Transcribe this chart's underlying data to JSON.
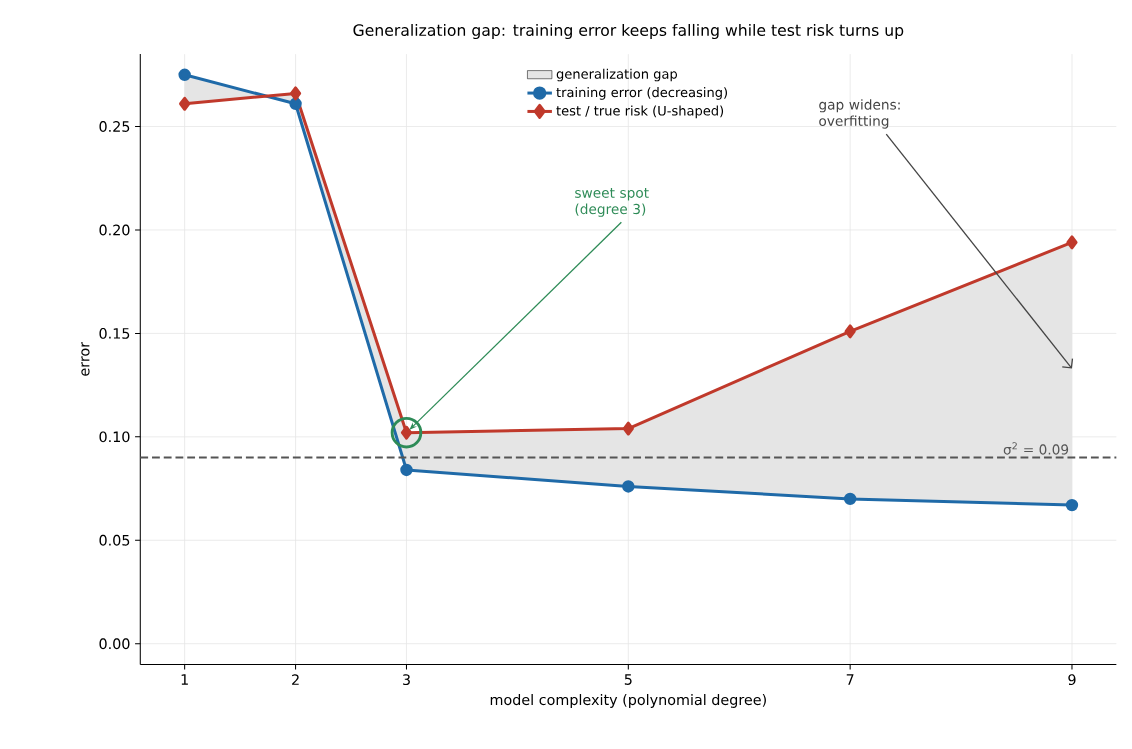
{
  "chart_data": {
    "type": "line",
    "title": "Generalization gap: training error keeps falling while test risk turns up",
    "xlabel": "model complexity (polynomial degree)",
    "ylabel": "error",
    "x": [
      1,
      2,
      3,
      5,
      7,
      9
    ],
    "series": [
      {
        "name": "training error (decreasing)",
        "type": "line",
        "color": "#1f6aa8",
        "marker": "circle",
        "values": [
          0.275,
          0.261,
          0.084,
          0.076,
          0.07,
          0.067
        ]
      },
      {
        "name": "test / true risk (U-shaped)",
        "type": "line",
        "color": "#c0392b",
        "marker": "diamond",
        "values": [
          0.261,
          0.266,
          0.102,
          0.104,
          0.151,
          0.194
        ],
        "lower": [
          0.275,
          0.261,
          0.084,
          0.076,
          0.07,
          0.067
        ],
        "upper": [
          0.261,
          0.266,
          0.102,
          0.104,
          0.151,
          0.194
        ]
      },
      {
        "name": "generalization gap",
        "type": "area",
        "color": "#e5e5e5",
        "values": [
          null,
          null,
          null,
          null,
          null,
          null
        ]
      }
    ],
    "xlim": [
      0.6,
      9.4
    ],
    "ylim": [
      -0.01,
      0.285
    ],
    "xticks": [
      1,
      2,
      3,
      5,
      7,
      9
    ],
    "yticks": [
      {
        "value": 0,
        "label": "0.00"
      },
      {
        "value": 0.05,
        "label": "0.05"
      },
      {
        "value": 0.1,
        "label": "0.10"
      },
      {
        "value": 0.15,
        "label": "0.15"
      },
      {
        "value": 0.2,
        "label": "0.20"
      },
      {
        "value": 0.25,
        "label": "0.25"
      }
    ],
    "ref_lines": [
      {
        "axis": "y",
        "value": 0.09,
        "label": "σ$^{2}$ = 0.09",
        "color": "#555555",
        "line_style": "dashed"
      }
    ],
    "annotations": [
      {
        "text": "sweet spot (degree 3)",
        "x": 3,
        "y": 0.102
      },
      {
        "text": "gap widens: overfitting",
        "x": 9,
        "y": 0.133
      }
    ],
    "grid": true,
    "legend": "top",
    "line_style": "solid"
  }
}
